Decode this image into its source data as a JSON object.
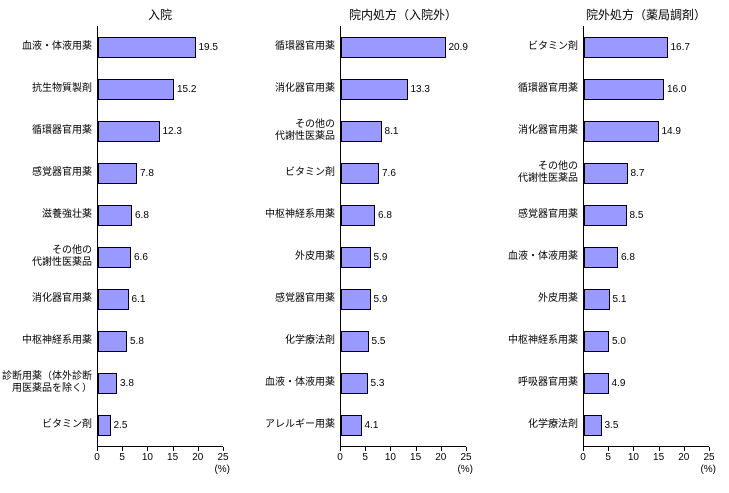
{
  "axis": {
    "ticks": [
      "0",
      "5",
      "10",
      "15",
      "20",
      "25"
    ],
    "max": 25,
    "unit_label": "(%)"
  },
  "colors": {
    "bar_fill": "#9999FF",
    "bar_border": "#000000",
    "axis": "#000000",
    "background": "#FFFFFF"
  },
  "chart_data": [
    {
      "type": "bar",
      "orientation": "horizontal",
      "title": "入院",
      "xlabel": "(%)",
      "xlim": [
        0,
        25
      ],
      "xticks": [
        0,
        5,
        10,
        15,
        20,
        25
      ],
      "categories": [
        "血液・体液用薬",
        "抗生物質製剤",
        "循環器官用薬",
        "感覚器官用薬",
        "滋養強壮薬",
        "その他の\n代謝性医薬品",
        "消化器官用薬",
        "中枢神経系用薬",
        "診断用薬（体外診断\n用医薬品を除く）",
        "ビタミン剤"
      ],
      "values": [
        19.5,
        15.2,
        12.3,
        7.8,
        6.8,
        6.6,
        6.1,
        5.8,
        3.8,
        2.5
      ],
      "value_labels": [
        "19.5",
        "15.2",
        "12.3",
        "7.8",
        "6.8",
        "6.6",
        "6.1",
        "5.8",
        "3.8",
        "2.5"
      ]
    },
    {
      "type": "bar",
      "orientation": "horizontal",
      "title": "院内処方（入院外）",
      "xlabel": "(%)",
      "xlim": [
        0,
        25
      ],
      "xticks": [
        0,
        5,
        10,
        15,
        20,
        25
      ],
      "categories": [
        "循環器官用薬",
        "消化器官用薬",
        "その他の\n代謝性医薬品",
        "ビタミン剤",
        "中枢神経系用薬",
        "外皮用薬",
        "感覚器官用薬",
        "化学療法剤",
        "血液・体液用薬",
        "アレルギー用薬"
      ],
      "values": [
        20.9,
        13.3,
        8.1,
        7.6,
        6.8,
        5.9,
        5.9,
        5.5,
        5.3,
        4.1
      ],
      "value_labels": [
        "20.9",
        "13.3",
        "8.1",
        "7.6",
        "6.8",
        "5.9",
        "5.9",
        "5.5",
        "5.3",
        "4.1"
      ]
    },
    {
      "type": "bar",
      "orientation": "horizontal",
      "title": "院外処方（薬局調剤）",
      "xlabel": "(%)",
      "xlim": [
        0,
        25
      ],
      "xticks": [
        0,
        5,
        10,
        15,
        20,
        25
      ],
      "categories": [
        "ビタミン剤",
        "循環器官用薬",
        "消化器官用薬",
        "その他の\n代謝性医薬品",
        "感覚器官用薬",
        "血液・体液用薬",
        "外皮用薬",
        "中枢神経系用薬",
        "呼吸器官用薬",
        "化学療法剤"
      ],
      "values": [
        16.7,
        16.0,
        14.9,
        8.7,
        8.5,
        6.8,
        5.1,
        5.0,
        4.9,
        3.5
      ],
      "value_labels": [
        "16.7",
        "16.0",
        "14.9",
        "8.7",
        "8.5",
        "6.8",
        "5.1",
        "5.0",
        "4.9",
        "3.5"
      ]
    }
  ]
}
